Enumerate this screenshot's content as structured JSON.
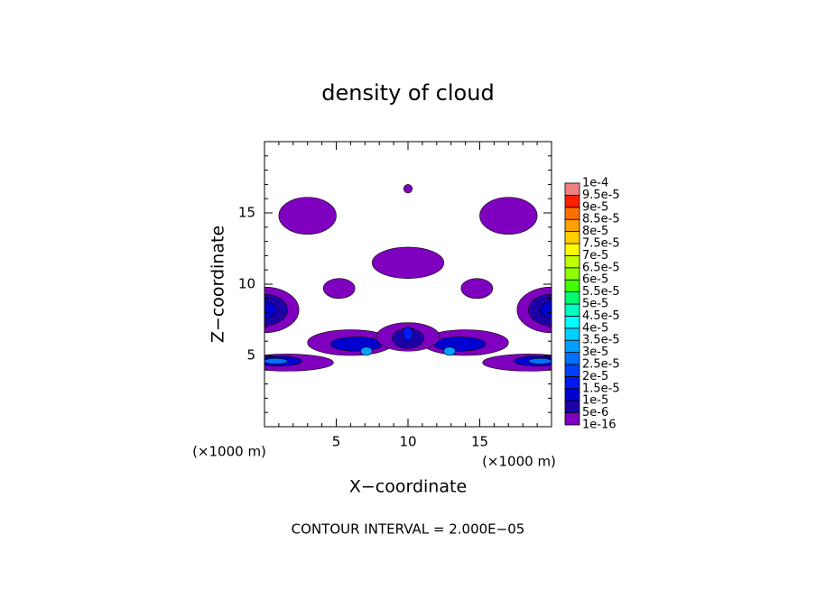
{
  "chart_data": {
    "type": "contour",
    "title": "density of cloud",
    "xlabel": "X−coordinate",
    "ylabel": "Z−coordinate",
    "x_unit": "(×1000 m)",
    "y_unit": "(×1000 m)",
    "footer": "CONTOUR INTERVAL = 2.000E−05",
    "xlim": [
      0,
      20
    ],
    "ylim": [
      0,
      20
    ],
    "xticks": [
      5,
      10,
      15
    ],
    "yticks": [
      5,
      10,
      15
    ],
    "colorbar": {
      "ticks": [
        {
          "value": 1e-16,
          "label": "1e-16"
        },
        {
          "value": 5e-06,
          "label": "5e-6"
        },
        {
          "value": 1e-05,
          "label": "1e-5"
        },
        {
          "value": 1.5e-05,
          "label": "1.5e-5"
        },
        {
          "value": 2e-05,
          "label": "2e-5"
        },
        {
          "value": 2.5e-05,
          "label": "2.5e-5"
        },
        {
          "value": 3e-05,
          "label": "3e-5"
        },
        {
          "value": 3.5e-05,
          "label": "3.5e-5"
        },
        {
          "value": 4e-05,
          "label": "4e-5"
        },
        {
          "value": 4.5e-05,
          "label": "4.5e-5"
        },
        {
          "value": 5e-05,
          "label": "5e-5"
        },
        {
          "value": 5.5e-05,
          "label": "5.5e-5"
        },
        {
          "value": 6e-05,
          "label": "6e-5"
        },
        {
          "value": 6.5e-05,
          "label": "6.5e-5"
        },
        {
          "value": 7e-05,
          "label": "7e-5"
        },
        {
          "value": 7.5e-05,
          "label": "7.5e-5"
        },
        {
          "value": 8e-05,
          "label": "8e-5"
        },
        {
          "value": 8.5e-05,
          "label": "8.5e-5"
        },
        {
          "value": 9e-05,
          "label": "9e-5"
        },
        {
          "value": 9.5e-05,
          "label": "9.5e-5"
        },
        {
          "value": 0.0001,
          "label": "1e-4"
        }
      ],
      "colors": [
        "#7f00bf",
        "#1e00a8",
        "#0000d0",
        "#0018f0",
        "#0040ff",
        "#0070ff",
        "#00a0ff",
        "#00d0ff",
        "#00ffff",
        "#00ffc0",
        "#00ff70",
        "#40ff00",
        "#90ff00",
        "#c0ff00",
        "#ffff00",
        "#ffd000",
        "#ffa000",
        "#ff7000",
        "#ff2000",
        "#f08080"
      ]
    },
    "regions": [
      {
        "x": 3,
        "z": 14.8,
        "rx": 2,
        "rz": 1.3,
        "value": 1e-16
      },
      {
        "x": 17,
        "z": 14.8,
        "rx": 2,
        "rz": 1.3,
        "value": 1e-16
      },
      {
        "x": 10,
        "z": 16.7,
        "rx": 0.3,
        "rz": 0.3,
        "value": 1e-16
      },
      {
        "x": 10,
        "z": 11.5,
        "rx": 2.5,
        "rz": 1.1,
        "value": 1e-16
      },
      {
        "x": 5.2,
        "z": 9.7,
        "rx": 1.1,
        "rz": 0.7,
        "value": 1e-16
      },
      {
        "x": 14.8,
        "z": 9.7,
        "rx": 1.1,
        "rz": 0.7,
        "value": 1e-16
      },
      {
        "x": 0,
        "z": 8.2,
        "rx": 2.4,
        "rz": 1.6,
        "value": 1e-16
      },
      {
        "x": 20,
        "z": 8.2,
        "rx": 2.4,
        "rz": 1.6,
        "value": 1e-16
      },
      {
        "x": 0,
        "z": 8.2,
        "rx": 1.6,
        "rz": 1.1,
        "value": 5e-06
      },
      {
        "x": 20,
        "z": 8.2,
        "rx": 1.6,
        "rz": 1.1,
        "value": 5e-06
      },
      {
        "x": 0,
        "z": 8.2,
        "rx": 0.8,
        "rz": 0.6,
        "value": 1e-05
      },
      {
        "x": 20,
        "z": 8.2,
        "rx": 0.8,
        "rz": 0.6,
        "value": 1e-05
      },
      {
        "x": 1.6,
        "z": 4.5,
        "rx": 3.2,
        "rz": 0.6,
        "value": 1e-16
      },
      {
        "x": 18.4,
        "z": 4.5,
        "rx": 3.2,
        "rz": 0.6,
        "value": 1e-16
      },
      {
        "x": 1,
        "z": 4.6,
        "rx": 1.6,
        "rz": 0.35,
        "value": 1e-05
      },
      {
        "x": 19,
        "z": 4.6,
        "rx": 1.6,
        "rz": 0.35,
        "value": 1e-05
      },
      {
        "x": 0.8,
        "z": 4.6,
        "rx": 0.8,
        "rz": 0.2,
        "value": 2.5e-05
      },
      {
        "x": 19.2,
        "z": 4.6,
        "rx": 0.8,
        "rz": 0.2,
        "value": 2.5e-05
      },
      {
        "x": 6,
        "z": 5.9,
        "rx": 3,
        "rz": 0.9,
        "value": 1e-16
      },
      {
        "x": 14,
        "z": 5.9,
        "rx": 3,
        "rz": 0.9,
        "value": 1e-16
      },
      {
        "x": 6.4,
        "z": 5.8,
        "rx": 1.8,
        "rz": 0.5,
        "value": 1e-05
      },
      {
        "x": 13.6,
        "z": 5.8,
        "rx": 1.8,
        "rz": 0.5,
        "value": 1e-05
      },
      {
        "x": 7.1,
        "z": 5.3,
        "rx": 0.4,
        "rz": 0.3,
        "value": 3e-05
      },
      {
        "x": 12.9,
        "z": 5.3,
        "rx": 0.4,
        "rz": 0.3,
        "value": 3e-05
      },
      {
        "x": 10,
        "z": 6.3,
        "rx": 2.2,
        "rz": 1,
        "value": 1e-16
      },
      {
        "x": 10,
        "z": 6.2,
        "rx": 1.1,
        "rz": 0.7,
        "value": 5e-06
      },
      {
        "x": 10,
        "z": 6.5,
        "rx": 0.35,
        "rz": 0.5,
        "value": 1.5e-05
      }
    ]
  }
}
